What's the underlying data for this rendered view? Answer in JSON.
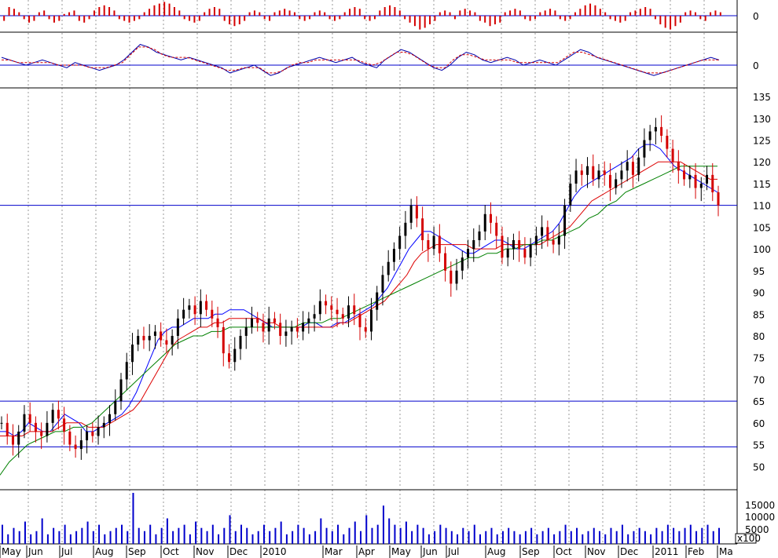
{
  "chart_data": [
    {
      "panel": "histogram",
      "type": "bar",
      "y_ticks": [
        "0"
      ],
      "color": "#d40000",
      "values": [
        -3,
        5,
        4,
        2,
        -2,
        -4,
        -3,
        2,
        3,
        -2,
        -4,
        -3,
        1,
        2,
        3,
        -3,
        -4,
        -2,
        3,
        5,
        6,
        5,
        3,
        -2,
        -3,
        -4,
        -3,
        -2,
        2,
        4,
        6,
        7,
        8,
        7,
        5,
        3,
        -2,
        -3,
        -4,
        -3,
        2,
        4,
        5,
        4,
        -3,
        -5,
        -6,
        -5,
        -3,
        2,
        3,
        2,
        -2,
        -3,
        2,
        3,
        4,
        3,
        2,
        -2,
        -3,
        -2,
        2,
        3,
        2,
        -2,
        -3,
        -2,
        2,
        4,
        5,
        4,
        -2,
        -3,
        -2,
        3,
        5,
        6,
        5,
        3,
        -2,
        -4,
        -6,
        -8,
        -7,
        -5,
        -3,
        2,
        3,
        2,
        -2,
        3,
        4,
        3,
        2,
        -3,
        -4,
        -6,
        -5,
        -4,
        2,
        3,
        4,
        3,
        -2,
        -3,
        -2,
        2,
        3,
        4,
        3,
        -2,
        -3,
        -2,
        2,
        4,
        6,
        7,
        6,
        4,
        2,
        -2,
        -3,
        -4,
        -3,
        2,
        3,
        4,
        5,
        4,
        -2,
        -5,
        -7,
        -8,
        -6,
        -4,
        2,
        3,
        2,
        -2,
        -3,
        2,
        3,
        2
      ]
    },
    {
      "panel": "oscillator",
      "type": "line",
      "y_ticks": [
        "0"
      ],
      "series": [
        {
          "color": "#0000aa",
          "values": [
            3,
            2,
            1,
            0,
            1,
            2,
            1,
            0,
            -1,
            1,
            0,
            -1,
            -2,
            -1,
            0,
            2,
            5,
            8,
            7,
            5,
            4,
            3,
            2,
            3,
            2,
            1,
            0,
            -1,
            -3,
            -2,
            -1,
            0,
            -2,
            -4,
            -3,
            -1,
            0,
            1,
            2,
            3,
            2,
            1,
            2,
            3,
            1,
            0,
            -1,
            2,
            4,
            6,
            5,
            3,
            1,
            -1,
            -2,
            0,
            3,
            5,
            4,
            2,
            1,
            2,
            3,
            2,
            0,
            1,
            2,
            1,
            0,
            2,
            4,
            6,
            5,
            3,
            2,
            1,
            0,
            -1,
            -2,
            -3,
            -4,
            -3,
            -2,
            -1,
            0,
            1,
            2,
            3,
            2
          ]
        },
        {
          "color": "#d40000",
          "dashed": true,
          "values": [
            2,
            2,
            1,
            1,
            1,
            1,
            1,
            0,
            0,
            0,
            0,
            -1,
            -1,
            -1,
            0,
            1,
            4,
            7,
            7,
            6,
            4,
            3,
            3,
            3,
            2,
            1,
            0,
            -1,
            -2,
            -2,
            -1,
            -1,
            -1,
            -3,
            -3,
            -2,
            0,
            1,
            1,
            2,
            2,
            2,
            2,
            2,
            2,
            1,
            0,
            1,
            3,
            5,
            5,
            4,
            2,
            0,
            -1,
            -1,
            2,
            4,
            4,
            3,
            2,
            2,
            2,
            2,
            1,
            1,
            1,
            1,
            1,
            1,
            3,
            5,
            5,
            4,
            3,
            2,
            1,
            0,
            -1,
            -2,
            -3,
            -3,
            -3,
            -2,
            -1,
            0,
            1,
            2,
            2,
            2
          ]
        }
      ]
    },
    {
      "panel": "price",
      "type": "candlestick",
      "y_ticks": [
        "135",
        "130",
        "125",
        "120",
        "115",
        "110",
        "105",
        "100",
        "95",
        "90",
        "85",
        "80",
        "75",
        "70",
        "65",
        "60",
        "55",
        "50"
      ],
      "up_color": "#000000",
      "down_color": "#d40000",
      "close": [
        60,
        57,
        55,
        58,
        62,
        60,
        58,
        57,
        60,
        63,
        61,
        58,
        55,
        54,
        56,
        58,
        57,
        59,
        60,
        62,
        65,
        70,
        74,
        78,
        80,
        79,
        80,
        81,
        79,
        78,
        80,
        84,
        86,
        87,
        85,
        88,
        86,
        84,
        82,
        76,
        74,
        77,
        80,
        82,
        84,
        83,
        81,
        84,
        83,
        80,
        81,
        82,
        81,
        83,
        84,
        85,
        88,
        87,
        86,
        85,
        84,
        87,
        85,
        82,
        81,
        86,
        90,
        94,
        97,
        100,
        103,
        106,
        110,
        107,
        102,
        100,
        103,
        99,
        95,
        92,
        95,
        98,
        100,
        102,
        104,
        108,
        106,
        103,
        98,
        100,
        102,
        100,
        98,
        101,
        103,
        105,
        102,
        101,
        103,
        110,
        115,
        118,
        117,
        119,
        116,
        118,
        117,
        114,
        116,
        118,
        120,
        117,
        121,
        125,
        127,
        128,
        126,
        123,
        120,
        118,
        116,
        117,
        114,
        115,
        117,
        113,
        110
      ],
      "series": [
        {
          "name": "",
          "color": "#0000ff",
          "values": [
            58,
            58,
            57,
            58,
            60,
            59,
            58,
            58,
            60,
            62,
            61,
            60,
            58,
            58,
            59,
            60,
            61,
            62,
            64,
            67,
            71,
            75,
            79,
            81,
            82,
            82,
            83,
            84,
            84,
            84,
            85,
            85,
            86,
            86,
            86,
            85,
            84,
            83,
            82,
            82,
            82,
            82,
            82,
            83,
            83,
            82,
            82,
            83,
            83,
            84,
            85,
            86,
            87,
            89,
            91,
            94,
            97,
            100,
            102,
            104,
            104,
            103,
            102,
            101,
            100,
            99,
            99,
            100,
            101,
            102,
            102,
            101,
            100,
            100,
            101,
            102,
            103,
            104,
            106,
            109,
            112,
            114,
            115,
            116,
            117,
            118,
            119,
            120,
            121,
            123,
            124,
            124,
            123,
            121,
            119,
            118,
            117,
            116,
            115,
            114,
            113
          ]
        },
        {
          "name": "",
          "color": "#dd0000",
          "values": [
            57,
            57,
            57,
            57,
            58,
            58,
            58,
            58,
            59,
            60,
            60,
            60,
            59,
            59,
            59,
            60,
            61,
            62,
            63,
            65,
            68,
            71,
            74,
            77,
            79,
            80,
            81,
            82,
            82,
            83,
            83,
            84,
            84,
            84,
            84,
            84,
            83,
            83,
            82,
            82,
            82,
            82,
            82,
            82,
            82,
            82,
            83,
            83,
            84,
            85,
            86,
            87,
            88,
            90,
            92,
            94,
            97,
            99,
            100,
            101,
            101,
            101,
            101,
            101,
            100,
            100,
            100,
            100,
            101,
            101,
            101,
            101,
            101,
            101,
            102,
            103,
            104,
            105,
            107,
            109,
            111,
            112,
            113,
            114,
            115,
            116,
            117,
            118,
            119,
            120,
            120,
            120,
            120,
            119,
            118,
            117,
            116,
            116
          ]
        },
        {
          "name": "",
          "color": "#008000",
          "values": [
            48,
            51,
            53,
            55,
            56,
            57,
            58,
            58,
            59,
            59,
            60,
            62,
            64,
            66,
            68,
            70,
            72,
            74,
            76,
            78,
            79,
            80,
            80,
            81,
            81,
            82,
            82,
            82,
            82,
            82,
            82,
            82,
            82,
            83,
            83,
            83,
            84,
            84,
            85,
            86,
            87,
            88,
            89,
            90,
            91,
            92,
            93,
            94,
            95,
            96,
            97,
            98,
            98,
            99,
            99,
            100,
            100,
            101,
            101,
            102,
            102,
            103,
            104,
            105,
            107,
            108,
            110,
            111,
            113,
            114,
            115,
            116,
            117,
            118,
            119,
            119,
            119,
            119,
            119
          ]
        }
      ],
      "reference_lines": [
        110,
        65,
        54.5
      ]
    },
    {
      "panel": "volume",
      "type": "bar",
      "color": "#0000cc",
      "y_ticks": [
        "15000",
        "10000",
        "5000"
      ],
      "units": "x100",
      "values": [
        6,
        3,
        5,
        4,
        7,
        3,
        4,
        8,
        3,
        5,
        4,
        6,
        3,
        4,
        5,
        7,
        4,
        6,
        3,
        4,
        5,
        6,
        4,
        16,
        5,
        4,
        6,
        3,
        5,
        8,
        4,
        5,
        6,
        3,
        7,
        5,
        4,
        6,
        3,
        5,
        9,
        4,
        6,
        5,
        3,
        4,
        6,
        4,
        5,
        7,
        3,
        4,
        6,
        5,
        3,
        4,
        8,
        5,
        4,
        6,
        3,
        5,
        7,
        4,
        9,
        5,
        6,
        12,
        8,
        6,
        5,
        7,
        4,
        6,
        5,
        3,
        4,
        6,
        5,
        4,
        3,
        5,
        4,
        6,
        3,
        4,
        5,
        3,
        4,
        5,
        4,
        3,
        4,
        5,
        3,
        4,
        5,
        3,
        4,
        6,
        4,
        5,
        3,
        4,
        5,
        4,
        3,
        5,
        4,
        6,
        3,
        4,
        5,
        4,
        3,
        5,
        4,
        6,
        5,
        4,
        5,
        6,
        4,
        5,
        6,
        4,
        5
      ]
    },
    {
      "panel": "x_axis",
      "type": "axis",
      "x_ticks": [
        "May",
        "Jun",
        "Jul",
        "Aug",
        "Sep",
        "Oct",
        "Nov",
        "Dec",
        "2010",
        "Mar",
        "Apr",
        "May",
        "Jun",
        "Jul",
        "Aug",
        "Sep",
        "Oct",
        "Nov",
        "Dec",
        "2011",
        "Feb",
        "Ma"
      ]
    }
  ]
}
